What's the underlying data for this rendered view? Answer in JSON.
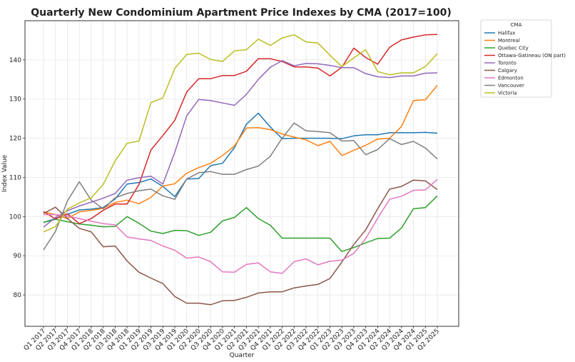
{
  "chart_data": {
    "type": "line",
    "title": "Quarterly New Condominium Apartment Price Indexes by CMA (2017=100)",
    "xlabel": "Quarter",
    "ylabel": "Index Value",
    "ylim": [
      72,
      150
    ],
    "yticks": [
      80,
      90,
      100,
      110,
      120,
      130,
      140
    ],
    "grid": true,
    "legend": {
      "title": "CMA",
      "placement": "outside-top-right"
    },
    "categories": [
      "Q1 2017",
      "Q2 2017",
      "Q3 2017",
      "Q4 2017",
      "Q1 2018",
      "Q2 2018",
      "Q3 2018",
      "Q4 2018",
      "Q1 2019",
      "Q2 2019",
      "Q3 2019",
      "Q4 2019",
      "Q1 2020",
      "Q2 2020",
      "Q3 2020",
      "Q4 2020",
      "Q1 2021",
      "Q2 2021",
      "Q3 2021",
      "Q4 2021",
      "Q1 2022",
      "Q2 2022",
      "Q3 2022",
      "Q4 2022",
      "Q1 2023",
      "Q2 2023",
      "Q3 2023",
      "Q4 2023",
      "Q1 2024",
      "Q2 2024",
      "Q3 2024",
      "Q4 2024",
      "Q1 2025",
      "Q2 2025"
    ],
    "series": [
      {
        "name": "Halifax",
        "color": "#1f77b4",
        "values": [
          98.5,
          99.5,
          100.6,
          101.7,
          101.9,
          102.3,
          104.5,
          108.3,
          108.7,
          109.6,
          107.7,
          105.1,
          109.6,
          109.7,
          113,
          113.6,
          117.6,
          123.6,
          126.4,
          122.9,
          119.9,
          120,
          120,
          120,
          120,
          119.9,
          120.6,
          120.9,
          120.9,
          121.4,
          121.4,
          121.4,
          121.5,
          121.3
        ]
      },
      {
        "name": "Montreal",
        "color": "#ff7f0e",
        "values": [
          101.2,
          100.5,
          99.5,
          101.2,
          101.6,
          102.1,
          103.6,
          104.2,
          103.3,
          104.9,
          107.8,
          108.4,
          111.1,
          112.5,
          113.6,
          115.6,
          118,
          122.6,
          122.7,
          122.2,
          121.1,
          120.3,
          119.6,
          118.1,
          119.2,
          115.6,
          116.9,
          118.2,
          119.8,
          120,
          123,
          129.6,
          129.8,
          133.5
        ]
      },
      {
        "name": "Quebec City",
        "color": "#2ca02c",
        "values": [
          98.5,
          99.3,
          98.7,
          98.1,
          97.8,
          97.4,
          97.5,
          100,
          98.3,
          96.3,
          95.7,
          96.5,
          96.4,
          95.2,
          96,
          98.9,
          99.8,
          102.3,
          99.5,
          97.8,
          94.5,
          94.5,
          94.5,
          94.5,
          94.5,
          91.1,
          92.1,
          93.3,
          94.4,
          94.5,
          97.1,
          102,
          102.3,
          105.3
        ]
      },
      {
        "name": "Ottawa-Gatineau (ON part)",
        "color": "#d62728",
        "values": [
          101.3,
          99.4,
          100.7,
          98.2,
          99.5,
          101.6,
          103.2,
          103.2,
          108.2,
          117,
          120.7,
          124.6,
          131.8,
          135.2,
          135.2,
          136,
          136,
          137.1,
          140.3,
          140.3,
          139.6,
          138.2,
          138.2,
          137.9,
          135.9,
          138.1,
          143,
          140.6,
          138.9,
          143.2,
          145.1,
          145.8,
          146.4,
          146.5
        ]
      },
      {
        "name": "Toronto",
        "color": "#9467bd",
        "values": [
          97.3,
          99.8,
          101.5,
          102.7,
          103.7,
          104.7,
          105.9,
          109.3,
          109.9,
          110.3,
          108.3,
          116.4,
          125.7,
          129.9,
          129.6,
          129,
          128.4,
          131.2,
          135,
          138.1,
          139.8,
          138.5,
          139.1,
          139,
          138.6,
          138,
          138,
          136.5,
          135.7,
          135.5,
          135.9,
          135.9,
          136.6,
          136.7
        ]
      },
      {
        "name": "Calgary",
        "color": "#8c564b",
        "values": [
          100.8,
          102.4,
          99.5,
          97,
          96.1,
          92.3,
          92.5,
          88.7,
          85.8,
          84.3,
          82.9,
          79.6,
          77.9,
          77.9,
          77.5,
          78.5,
          78.6,
          79.4,
          80.5,
          80.8,
          80.8,
          81.8,
          82.3,
          82.7,
          84.2,
          88.4,
          92.9,
          96.6,
          102,
          107,
          107.7,
          109.3,
          109.1,
          106.9
        ]
      },
      {
        "name": "Edmonton",
        "color": "#e377c2",
        "values": [
          100.5,
          100.5,
          100.1,
          99.5,
          98.8,
          98.2,
          97.9,
          94.8,
          94.3,
          93.9,
          92.5,
          91.4,
          89.4,
          89.7,
          88.5,
          85.9,
          85.8,
          87.8,
          88.2,
          85.9,
          85.5,
          88.5,
          89.2,
          87.7,
          88.6,
          88.9,
          90.6,
          94.4,
          99.6,
          104.4,
          105.2,
          106.7,
          106.8,
          109.5
        ]
      },
      {
        "name": "Vancouver",
        "color": "#7f7f7f",
        "values": [
          91.5,
          96.2,
          104,
          108.9,
          104.2,
          102,
          104.8,
          105.9,
          106.6,
          107,
          105.3,
          104.4,
          109.6,
          111.2,
          111.5,
          110.8,
          110.8,
          112,
          112.9,
          115.4,
          120,
          123.9,
          121.9,
          121.7,
          121.4,
          119.3,
          119.4,
          115.8,
          117.1,
          119.9,
          118.4,
          119.2,
          117.5,
          114.7
        ]
      },
      {
        "name": "Victoria",
        "color": "#bcbd22",
        "values": [
          96.1,
          97.4,
          101.9,
          103.5,
          104.8,
          108.2,
          114.2,
          118.7,
          119.3,
          129.1,
          130.3,
          137.8,
          141.4,
          141.7,
          140.1,
          139.6,
          142.3,
          142.6,
          145.3,
          143.7,
          145.6,
          146.4,
          144.6,
          144.3,
          141.2,
          138.3,
          140.5,
          142.6,
          137,
          136.2,
          136.7,
          136.7,
          138.3,
          141.6
        ]
      }
    ]
  }
}
